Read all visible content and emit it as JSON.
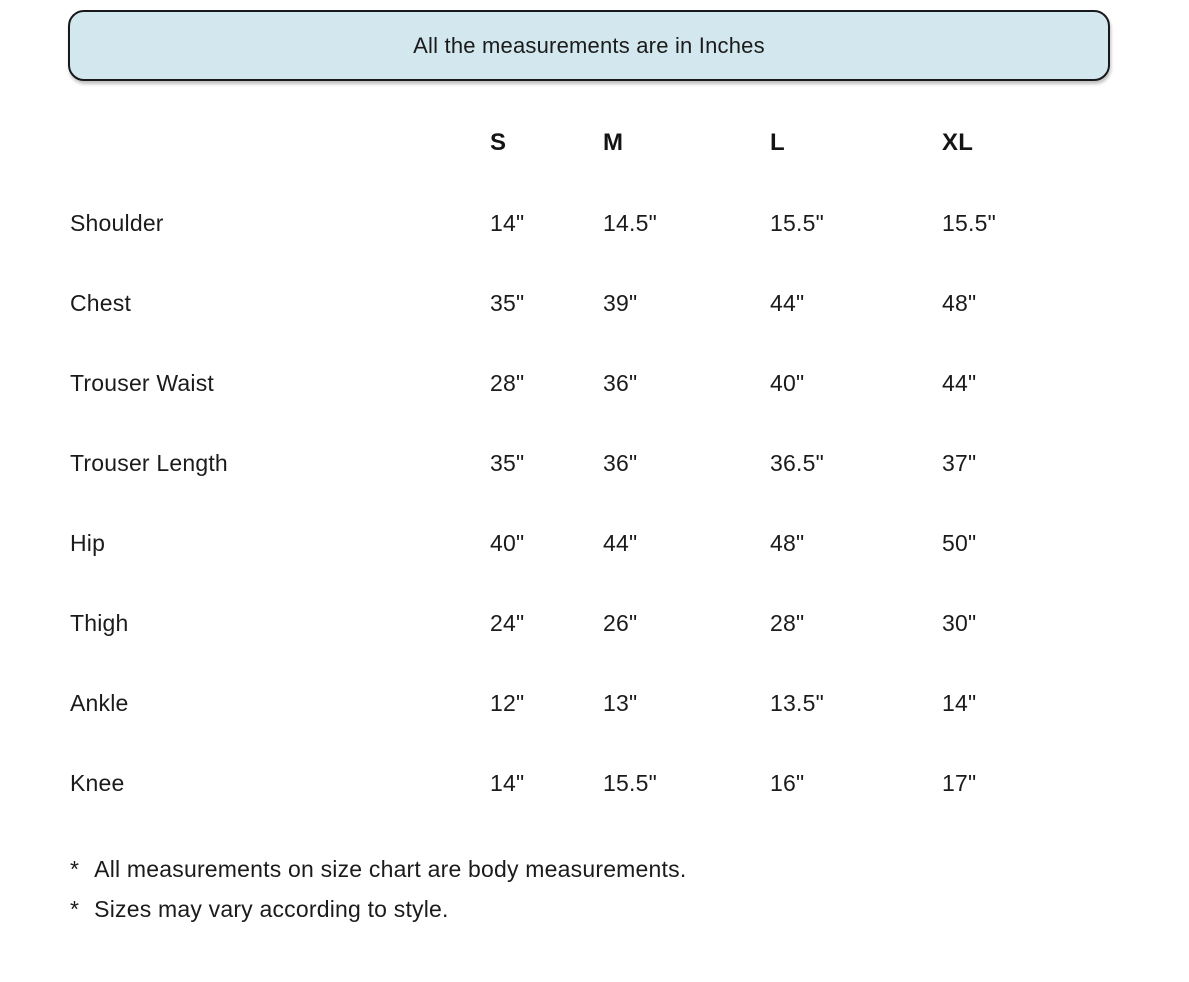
{
  "banner": {
    "text": "All the measurements are in Inches"
  },
  "colors": {
    "banner_bg": "#d3e7ee",
    "banner_border": "#17191c",
    "text": "#1b1b1b",
    "page_bg": "#ffffff"
  },
  "chart_data": {
    "type": "table",
    "title": "All the measurements are in Inches",
    "columns": [
      "S",
      "M",
      "L",
      "XL"
    ],
    "rows": [
      {
        "label": "Shoulder",
        "values": [
          "14\"",
          "14.5\"",
          "15.5\"",
          "15.5\""
        ]
      },
      {
        "label": "Chest",
        "values": [
          "35\"",
          "39\"",
          "44\"",
          "48\""
        ]
      },
      {
        "label": "Trouser Waist",
        "values": [
          "28\"",
          "36\"",
          "40\"",
          "44\""
        ]
      },
      {
        "label": "Trouser Length",
        "values": [
          "35\"",
          "36\"",
          "36.5\"",
          "37\""
        ]
      },
      {
        "label": "Hip",
        "values": [
          "40\"",
          "44\"",
          "48\"",
          "50\""
        ]
      },
      {
        "label": "Thigh",
        "values": [
          "24\"",
          "26\"",
          "28\"",
          "30\""
        ]
      },
      {
        "label": "Ankle",
        "values": [
          "12\"",
          "13\"",
          "13.5\"",
          "14\""
        ]
      },
      {
        "label": "Knee",
        "values": [
          "14\"",
          "15.5\"",
          "16\"",
          "17\""
        ]
      }
    ]
  },
  "notes": [
    {
      "marker": "*",
      "text": "All measurements on size chart are body measurements."
    },
    {
      "marker": "*",
      "text": "Sizes may vary according to style."
    }
  ]
}
